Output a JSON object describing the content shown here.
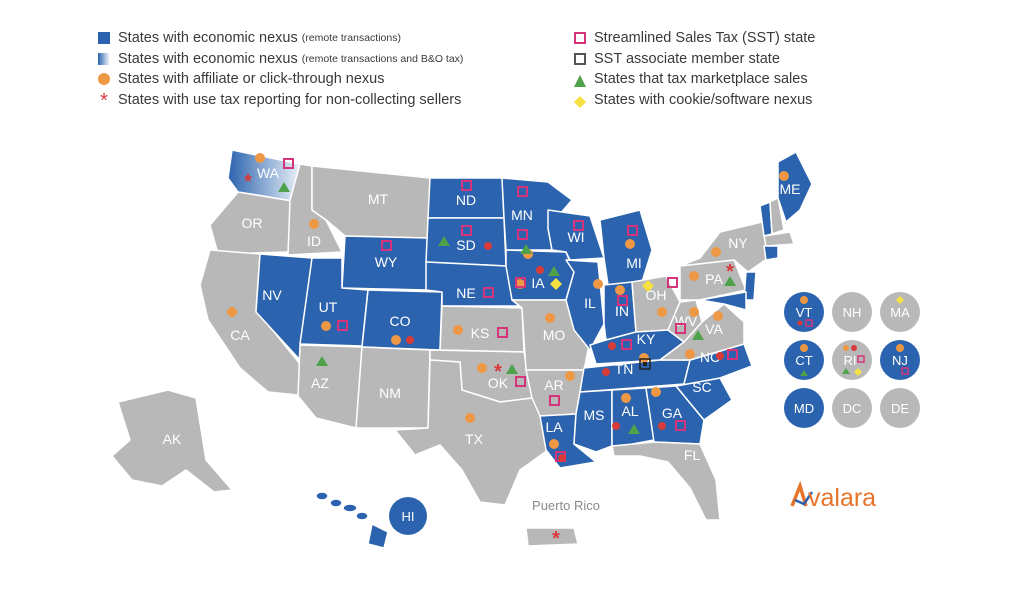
{
  "legend": {
    "left": [
      {
        "symbol": "square-blue",
        "text": "States with economic nexus",
        "note": "(remote transactions)"
      },
      {
        "symbol": "square-gradient",
        "text": "States with economic nexus",
        "note": "(remote transactions and B&O tax)"
      },
      {
        "symbol": "circle-orange",
        "text": "States with affiliate or click-through nexus",
        "note": ""
      },
      {
        "symbol": "asterisk-red",
        "text": "States with use tax reporting for non-collecting sellers",
        "note": ""
      }
    ],
    "right": [
      {
        "symbol": "square-pink",
        "text": "Streamlined Sales Tax (SST) state"
      },
      {
        "symbol": "square-outline",
        "text": "SST associate member state"
      },
      {
        "symbol": "triangle-green",
        "text": "States that tax marketplace sales"
      },
      {
        "symbol": "diamond-yellow",
        "text": "States with cookie/software nexus"
      }
    ]
  },
  "colors": {
    "economic_nexus": "#2b63ae",
    "other_state": "#b8b8b8",
    "affiliate": "#ee9845",
    "use_tax": "#d83a3a",
    "sst": "#d6347a",
    "marketplace": "#4ea24a",
    "cookie": "#f5e142",
    "brand": "#e8742a"
  },
  "states": {
    "WA": "WA",
    "OR": "OR",
    "ID": "ID",
    "MT": "MT",
    "WY": "WY",
    "ND": "ND",
    "SD": "SD",
    "NE": "NE",
    "MN": "MN",
    "WI": "WI",
    "MI": "MI",
    "IA": "IA",
    "IL": "IL",
    "IN": "IN",
    "OH": "OH",
    "NV": "NV",
    "UT": "UT",
    "CO": "CO",
    "CA": "CA",
    "AZ": "AZ",
    "NM": "NM",
    "KS": "KS",
    "MO": "MO",
    "OK": "OK",
    "AR": "AR",
    "TX": "TX",
    "LA": "LA",
    "MS": "MS",
    "AL": "AL",
    "GA": "GA",
    "FL": "FL",
    "TN": "TN",
    "KY": "KY",
    "WV": "WV",
    "VA": "VA",
    "NC": "NC",
    "SC": "SC",
    "PA": "PA",
    "NY": "NY",
    "ME": "ME",
    "AK": "AK",
    "HI": "HI"
  },
  "small_states": [
    {
      "code": "VT",
      "color": "#2b63ae"
    },
    {
      "code": "NH",
      "color": "#b8b8b8"
    },
    {
      "code": "MA",
      "color": "#b8b8b8"
    },
    {
      "code": "CT",
      "color": "#2b63ae"
    },
    {
      "code": "RI",
      "color": "#b8b8b8"
    },
    {
      "code": "NJ",
      "color": "#2b63ae"
    },
    {
      "code": "MD",
      "color": "#2b63ae"
    },
    {
      "code": "DC",
      "color": "#b8b8b8"
    },
    {
      "code": "DE",
      "color": "#b8b8b8"
    }
  ],
  "territory": {
    "label": "Puerto Rico"
  },
  "brand": {
    "name": "Avalara"
  }
}
